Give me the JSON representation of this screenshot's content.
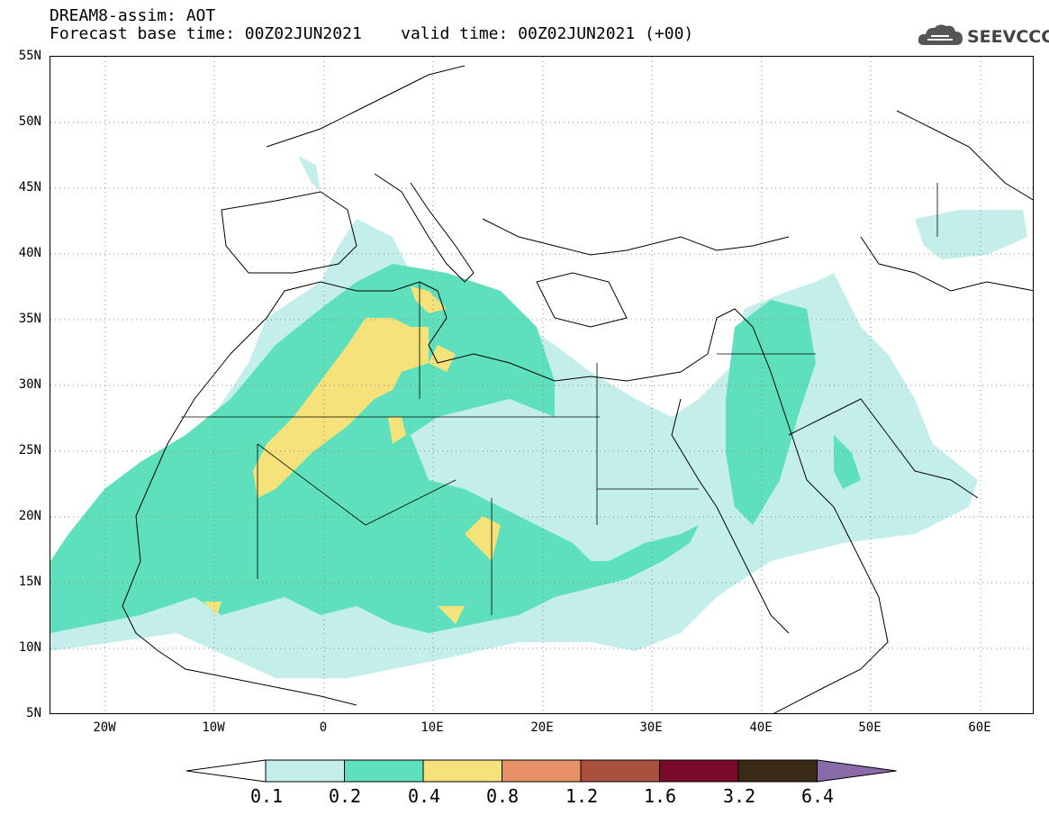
{
  "header": {
    "line1": "DREAM8-assim: AOT",
    "line2": "Forecast base time: 00Z02JUN2021    valid time: 00Z02JUN2021 (+00)"
  },
  "logo": {
    "text": "SEEVCCC",
    "icon": "cloud-logo-icon"
  },
  "map": {
    "projection": "lat-lon",
    "lon_range": [
      -25,
      65
    ],
    "lat_range": [
      5,
      55
    ],
    "y_ticks": [
      "55N",
      "50N",
      "45N",
      "40N",
      "35N",
      "30N",
      "25N",
      "20N",
      "15N",
      "10N",
      "5N"
    ],
    "x_ticks": [
      "20W",
      "10W",
      "0",
      "10E",
      "20E",
      "30E",
      "40E",
      "50E",
      "60E"
    ],
    "grid": "dotted"
  },
  "colorbar": {
    "labels": [
      "0.1",
      "0.2",
      "0.4",
      "0.8",
      "1.2",
      "1.6",
      "3.2",
      "6.4"
    ],
    "colors": [
      "#ffffff",
      "#c4eeea",
      "#5fe0bd",
      "#f5e27a",
      "#e89068",
      "#a9503e",
      "#7a0a2a",
      "#3a2a18",
      "#8a6aa8"
    ]
  }
}
